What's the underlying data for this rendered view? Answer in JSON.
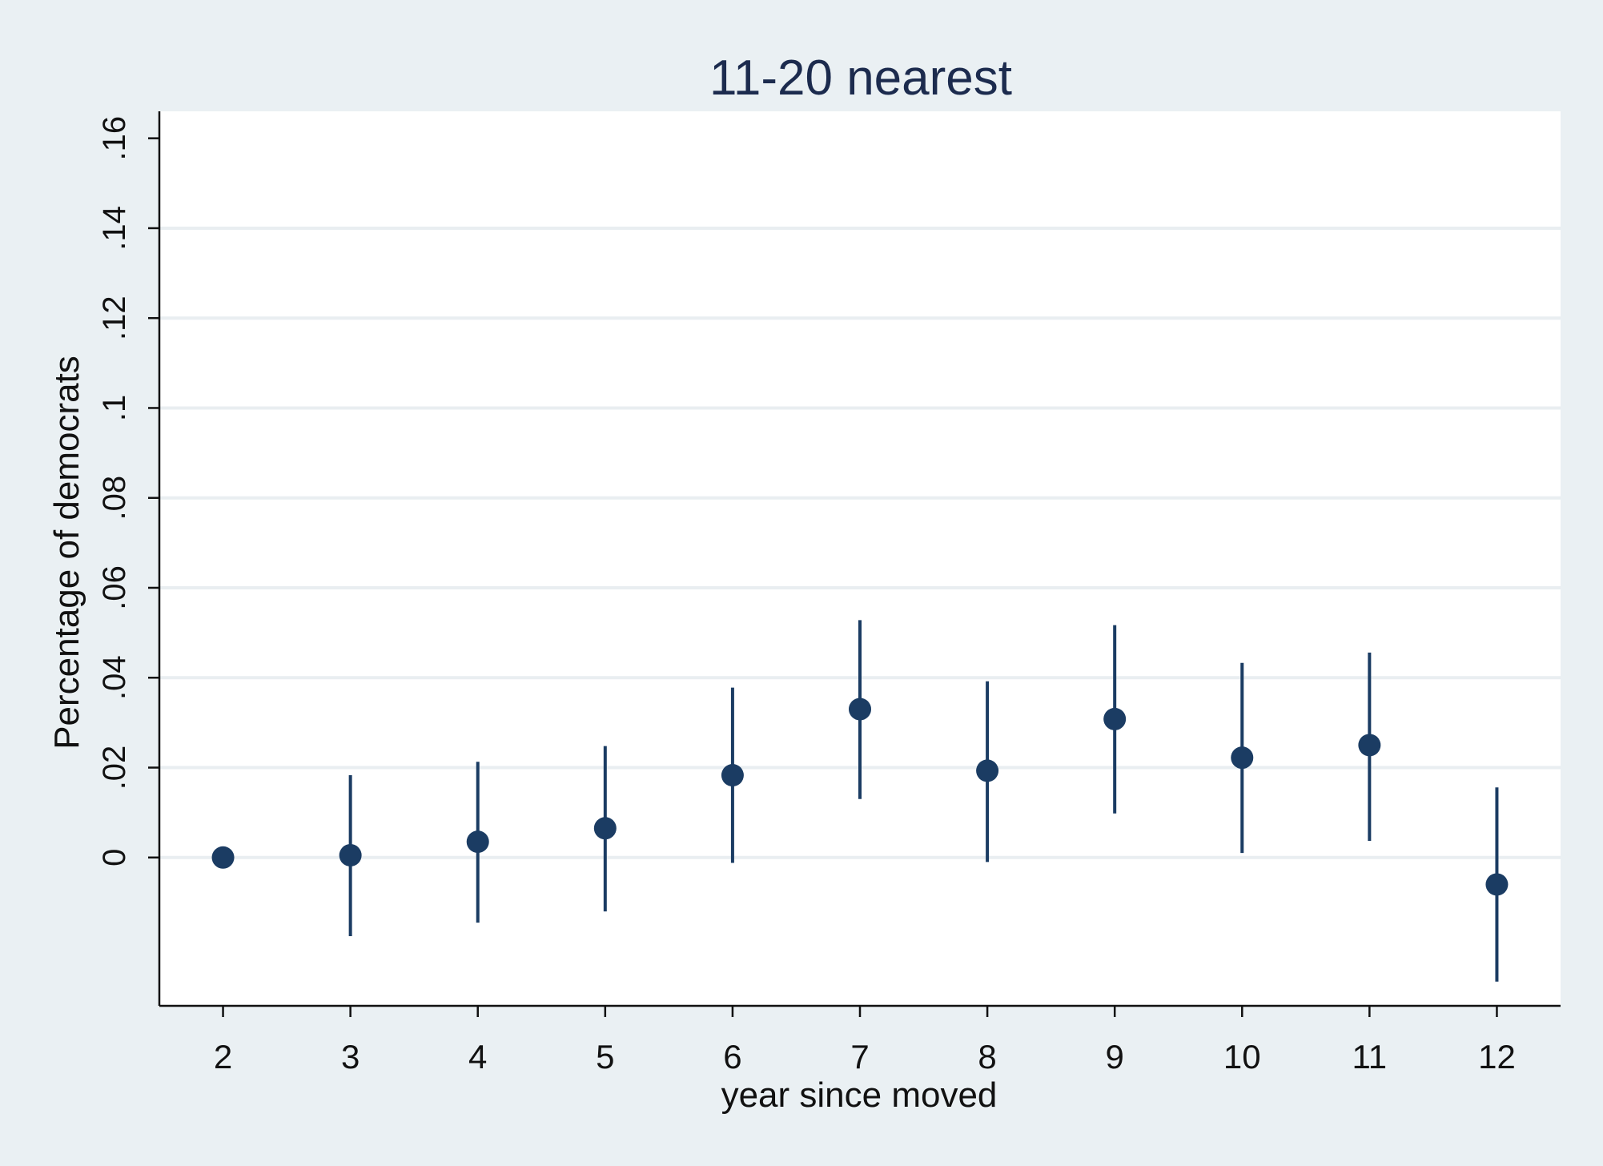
{
  "chart_data": {
    "type": "scatter",
    "title": "11-20 nearest",
    "xlabel": "year since moved",
    "ylabel": "Percentage of democrats",
    "xlim": [
      1.5,
      12.5
    ],
    "ylim": [
      -0.033,
      0.166
    ],
    "x_ticks": [
      2,
      3,
      4,
      5,
      6,
      7,
      8,
      9,
      10,
      11,
      12
    ],
    "x_tick_labels": [
      "2",
      "3",
      "4",
      "5",
      "6",
      "7",
      "8",
      "9",
      "10",
      "11",
      "12"
    ],
    "y_ticks": [
      0,
      0.02,
      0.04,
      0.06,
      0.08,
      0.1,
      0.12,
      0.14,
      0.16
    ],
    "y_tick_labels": [
      "0",
      ".02",
      ".04",
      ".06",
      ".08",
      ".1",
      ".12",
      ".14",
      ".16"
    ],
    "grid": true,
    "series": [
      {
        "x": [
          2,
          3,
          4,
          5,
          6,
          7,
          8,
          9,
          10,
          11,
          12
        ],
        "values": [
          0,
          0.0005,
          0.0035,
          0.0065,
          0.0183,
          0.033,
          0.0193,
          0.0308,
          0.0222,
          0.025,
          -0.006
        ],
        "ci_low": [
          0,
          -0.0175,
          -0.0145,
          -0.012,
          -0.0012,
          0.013,
          -0.001,
          0.0098,
          0.001,
          0.0037,
          -0.0276
        ],
        "ci_high": [
          0,
          0.0183,
          0.0213,
          0.0248,
          0.0378,
          0.0528,
          0.0392,
          0.0517,
          0.0433,
          0.0456,
          0.0156
        ]
      }
    ],
    "colors": {
      "background": "#eaf0f3",
      "plot_background": "#ffffff",
      "marker": "#1b3c63",
      "gridline": "#e9eef1",
      "title": "#1c2b4e"
    }
  }
}
